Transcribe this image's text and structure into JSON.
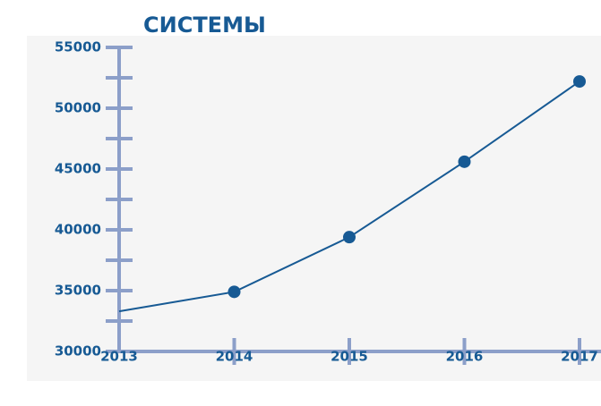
{
  "chart_data": {
    "type": "line",
    "title": "СИСТЕМЫ",
    "x": [
      2013,
      2014,
      2015,
      2016,
      2017
    ],
    "xlim": [
      2013,
      2017
    ],
    "xticks": [
      2013,
      2014,
      2015,
      2016,
      2017
    ],
    "series": [
      {
        "color": "#175a94",
        "values": [
          33300,
          34900,
          39400,
          45600,
          52200
        ],
        "markers": [
          false,
          true,
          true,
          true,
          true
        ]
      }
    ],
    "ylim": [
      30000,
      55000
    ],
    "yticks": [
      30000,
      35000,
      40000,
      45000,
      50000,
      55000
    ],
    "yminorticks": [
      32500,
      37500,
      42500,
      47500,
      52500
    ],
    "axis_color": "#8c9fc9"
  }
}
